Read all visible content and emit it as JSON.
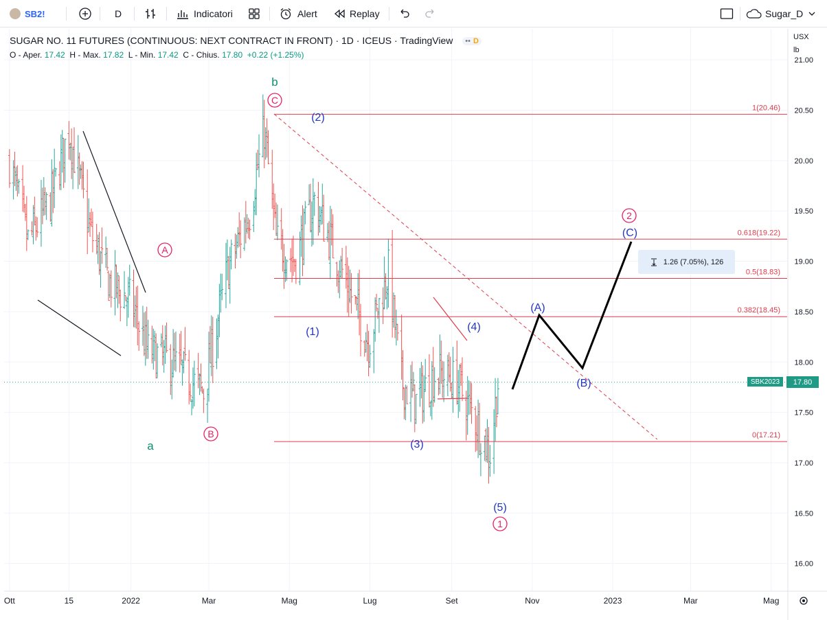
{
  "toolbar": {
    "symbol": "SB2!",
    "interval": "D",
    "indicators_label": "Indicatori",
    "alert_label": "Alert",
    "replay_label": "Replay",
    "layout_name": "Sugar_D"
  },
  "legend": {
    "title": "SUGAR NO. 11 FUTURES (CONTINUOUS: NEXT CONTRACT IN FRONT) · 1D · ICEUS · TradingView",
    "open_label": "O - Aper.",
    "open": "17.42",
    "high_label": "H - Max.",
    "high": "17.82",
    "low_label": "L - Min.",
    "low": "17.42",
    "close_label": "C - Chius.",
    "close": "17.80",
    "change": "+0.22 (+1.25%)",
    "badge_d": "D"
  },
  "price_scale": {
    "currency": "USX",
    "unit": "lb",
    "ticks": [
      "21.00",
      "20.50",
      "20.00",
      "19.50",
      "19.00",
      "18.50",
      "18.00",
      "17.50",
      "17.00",
      "16.50",
      "16.00"
    ]
  },
  "time_axis": {
    "ticks": [
      "Ott",
      "15",
      "2022",
      "Mar",
      "Mag",
      "Lug",
      "Set",
      "Nov",
      "2023",
      "Mar",
      "Mag"
    ]
  },
  "fib_levels": [
    {
      "label": "1(20.46)",
      "value": 20.46
    },
    {
      "label": "0.618(19.22)",
      "value": 19.22
    },
    {
      "label": "0.5(18.83)",
      "value": 18.83
    },
    {
      "label": "0.382(18.45)",
      "value": 18.45
    },
    {
      "label": "0(17.21)",
      "value": 17.21
    }
  ],
  "current_price": {
    "symbol_tag": "SBK2023",
    "value": "17.80"
  },
  "measure": {
    "text": "1.26 (7.05%), 126"
  },
  "wave_labels": {
    "a": "a",
    "b": "b",
    "A": "A",
    "B": "B",
    "C": "C",
    "w1": "(1)",
    "w2": "(2)",
    "w3": "(3)",
    "w4": "(4)",
    "w5": "(5)",
    "circle1": "1",
    "circle2": "2",
    "projA": "(A)",
    "projB": "(B)",
    "projC": "(C)"
  },
  "colors": {
    "up": "#26a69a",
    "down": "#ef5350",
    "fib": "#e03c4b",
    "wave_blue": "#2236c4",
    "wave_pink": "#e91e63",
    "wave_green": "#0a8f6f"
  },
  "chart_data": {
    "type": "ohlc",
    "unit": "USX/lb",
    "y_range": [
      15.95,
      21.1
    ],
    "x_start": "2021-09-29",
    "x_end": "2023-05-10",
    "closes_approx": [
      [
        "2021-10-01",
        20.0
      ],
      [
        "2021-10-15",
        19.2
      ],
      [
        "2021-11-01",
        19.6
      ],
      [
        "2021-11-15",
        20.3
      ],
      [
        "2021-12-01",
        19.3
      ],
      [
        "2021-12-15",
        18.8
      ],
      [
        "2022-01-01",
        18.6
      ],
      [
        "2022-01-14",
        18.1
      ],
      [
        "2022-02-01",
        18.0
      ],
      [
        "2022-02-25",
        17.7
      ],
      [
        "2022-03-15",
        18.9
      ],
      [
        "2022-04-01",
        19.5
      ],
      [
        "2022-04-12",
        20.3
      ],
      [
        "2022-04-21",
        19.2
      ],
      [
        "2022-05-05",
        19.0
      ],
      [
        "2022-05-20",
        19.6
      ],
      [
        "2022-06-10",
        18.9
      ],
      [
        "2022-06-30",
        18.2
      ],
      [
        "2022-07-15",
        18.9
      ],
      [
        "2022-07-25",
        17.8
      ],
      [
        "2022-08-05",
        17.6
      ],
      [
        "2022-08-20",
        17.9
      ],
      [
        "2022-09-05",
        17.8
      ],
      [
        "2022-09-20",
        17.4
      ],
      [
        "2022-09-30",
        17.1
      ],
      [
        "2022-10-06",
        17.8
      ]
    ]
  }
}
